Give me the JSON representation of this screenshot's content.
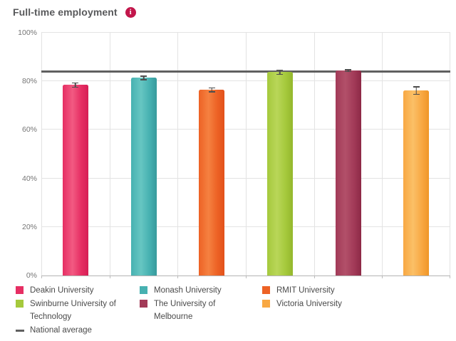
{
  "header": {
    "title": "Full-time employment"
  },
  "chart_data": {
    "type": "bar",
    "title": "Full-time employment",
    "xlabel": "",
    "ylabel": "",
    "ylim": [
      0,
      100
    ],
    "y_ticks": [
      {
        "label": "0%",
        "value": 0
      },
      {
        "label": "20%",
        "value": 20
      },
      {
        "label": "40%",
        "value": 40
      },
      {
        "label": "60%",
        "value": 60
      },
      {
        "label": "80%",
        "value": 80
      },
      {
        "label": "100%",
        "value": 100
      }
    ],
    "grid": true,
    "legend_position": "bottom",
    "categories": [
      "Deakin University",
      "Monash University",
      "RMIT University",
      "Swinburne University of Technology",
      "The University of Melbourne",
      "Victoria University"
    ],
    "bars": [
      {
        "label": "Deakin University",
        "value": 78.5,
        "error": 1.1,
        "color": "#e62e63",
        "color_light": "#f25a82",
        "color_dark": "#d61e55"
      },
      {
        "label": "Monash University",
        "value": 81.4,
        "error": 0.9,
        "color": "#47b1b1",
        "color_light": "#66c6c2",
        "color_dark": "#379a9c"
      },
      {
        "label": "RMIT University",
        "value": 76.5,
        "error": 1.0,
        "color": "#ed6225",
        "color_light": "#f58140",
        "color_dark": "#e2511b"
      },
      {
        "label": "Swinburne University of Technology",
        "value": 83.8,
        "error": 1.1,
        "color": "#a5c93c",
        "color_light": "#b9d659",
        "color_dark": "#94b72c"
      },
      {
        "label": "The University of Melbourne",
        "value": 84.4,
        "error": 0.6,
        "color": "#a23a58",
        "color_light": "#b25069",
        "color_dark": "#8d2946"
      },
      {
        "label": "Victoria University",
        "value": 76.2,
        "error": 1.8,
        "color": "#f8a843",
        "color_light": "#fbc067",
        "color_dark": "#f09627"
      }
    ],
    "national_average": {
      "label": "National average",
      "value": 83.9,
      "color": "#606060"
    }
  }
}
